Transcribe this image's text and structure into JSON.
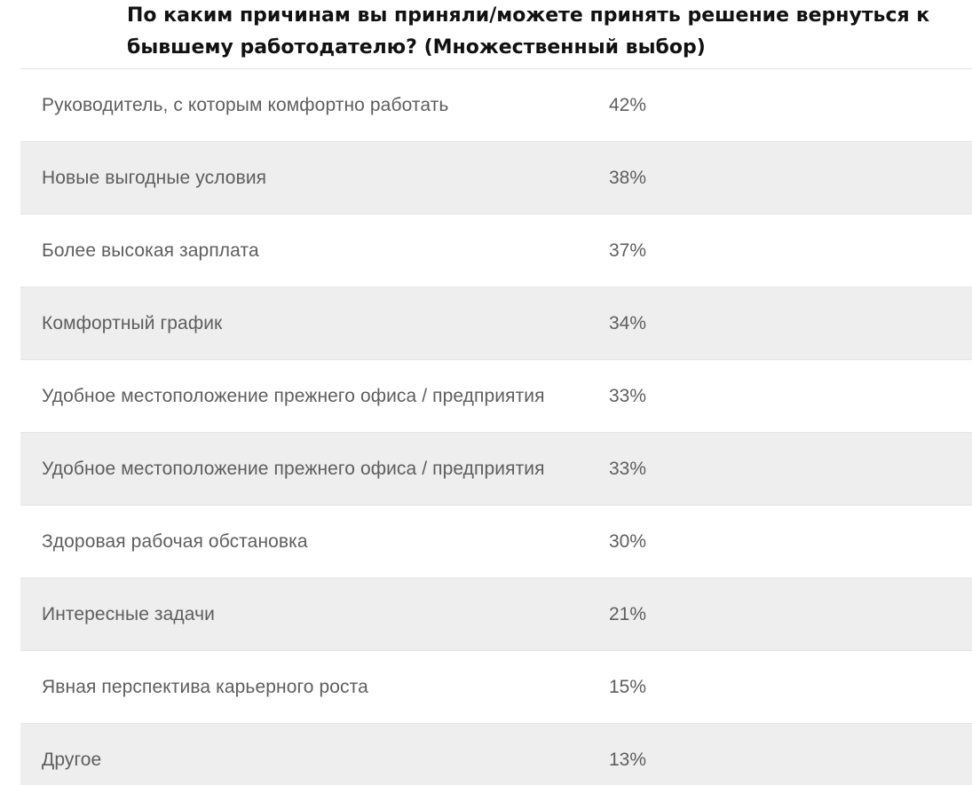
{
  "title": "По каким причинам вы приняли/можете принять решение вернуться к бывшему работодателю? (Множественный выбор)",
  "rows": [
    {
      "label": "Руководитель, с которым комфортно работать",
      "value": "42%"
    },
    {
      "label": "Новые выгодные условия",
      "value": "38%"
    },
    {
      "label": "Более высокая зарплата",
      "value": "37%"
    },
    {
      "label": "Комфортный график",
      "value": "34%"
    },
    {
      "label": "Удобное местоположение прежнего офиса / предприятия",
      "value": "33%"
    },
    {
      "label": "Удобное местоположение прежнего офиса / предприятия",
      "value": "33%"
    },
    {
      "label": "Здоровая рабочая обстановка",
      "value": "30%"
    },
    {
      "label": "Интересные задачи",
      "value": "21%"
    },
    {
      "label": "Явная перспектива карьерного роста",
      "value": "15%"
    },
    {
      "label": "Другое",
      "value": "13%"
    }
  ]
}
